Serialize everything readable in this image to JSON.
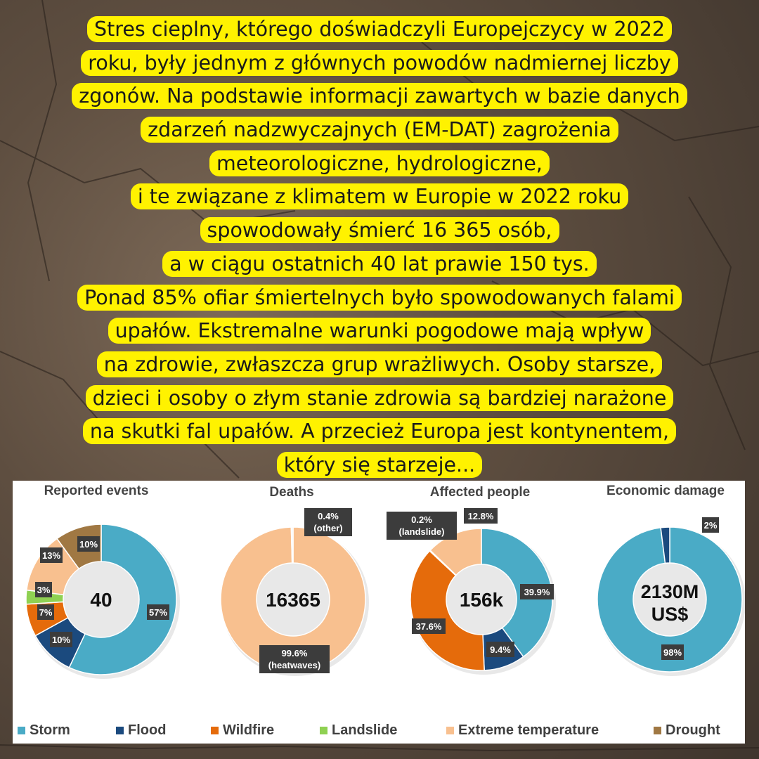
{
  "text_lines": [
    "Stres cieplny, którego doświadczyli Europejczycy w 2022",
    "roku, były jednym z głównych powodów nadmiernej liczby",
    "zgonów. Na podstawie informacji zawartych w bazie danych",
    "zdarzeń nadzwyczajnych (EM-DAT) zagrożenia",
    "meteorologiczne, hydrologiczne,",
    "i te związane z klimatem w Europie w 2022 roku",
    "spowodowały śmierć 16 365 osób,",
    "a w ciągu ostatnich 40 lat prawie 150 tys.",
    "Ponad 85% ofiar śmiertelnych było spowodowanych falami",
    "upałów. Ekstremalne warunki pogodowe mają wpływ",
    "na zdrowie, zwłaszcza grup wrażliwych. Osoby starsze,",
    "dzieci i osoby o złym stanie zdrowia są bardziej narażone",
    "na skutki fal upałów. A przecież Europa jest kontynentem,",
    "który się starzeje..."
  ],
  "colors": {
    "highlight": "#fff200",
    "Storm": "#4aabc6",
    "Flood": "#1b4a7e",
    "Wildfire": "#e56b0b",
    "Landslide": "#8fd152",
    "Extreme temperature": "#f8c08f",
    "Drought": "#a07843",
    "other": "#f3f3f3",
    "label_bg": "#3c3c3c"
  },
  "chart_data": [
    {
      "type": "pie",
      "title": "Reported events",
      "center_label": "40",
      "slices": [
        {
          "category": "Storm",
          "value": 57,
          "label": "57%"
        },
        {
          "category": "Flood",
          "value": 10,
          "label": "10%"
        },
        {
          "category": "Wildfire",
          "value": 7,
          "label": "7%"
        },
        {
          "category": "Landslide",
          "value": 3,
          "label": "3%"
        },
        {
          "category": "Extreme temperature",
          "value": 13,
          "label": "13%"
        },
        {
          "category": "Drought",
          "value": 10,
          "label": "10%"
        }
      ]
    },
    {
      "type": "pie",
      "title": "Deaths",
      "center_label": "16365",
      "slices": [
        {
          "category": "Extreme temperature",
          "value": 99.6,
          "label": "99.6%",
          "sublabel": "(heatwaves)"
        },
        {
          "category": "other",
          "value": 0.4,
          "label": "0.4%",
          "sublabel": "(other)"
        }
      ]
    },
    {
      "type": "pie",
      "title": "Affected people",
      "center_label": "156k",
      "slices": [
        {
          "category": "Storm",
          "value": 39.9,
          "label": "39.9%"
        },
        {
          "category": "Flood",
          "value": 9.4,
          "label": "9.4%"
        },
        {
          "category": "Wildfire",
          "value": 37.6,
          "label": "37.6%"
        },
        {
          "category": "Landslide",
          "value": 0.2,
          "label": "0.2%",
          "sublabel": "(landslide)"
        },
        {
          "category": "Extreme temperature",
          "value": 12.8,
          "label": "12.8%"
        }
      ]
    },
    {
      "type": "pie",
      "title": "Economic damage",
      "center_label": "2130M",
      "center_sublabel": "US$",
      "slices": [
        {
          "category": "Storm",
          "value": 98,
          "label": "98%"
        },
        {
          "category": "Flood",
          "value": 2,
          "label": "2%"
        }
      ]
    }
  ],
  "legend": [
    "Storm",
    "Flood",
    "Wildfire",
    "Landslide",
    "Extreme temperature",
    "Drought"
  ]
}
